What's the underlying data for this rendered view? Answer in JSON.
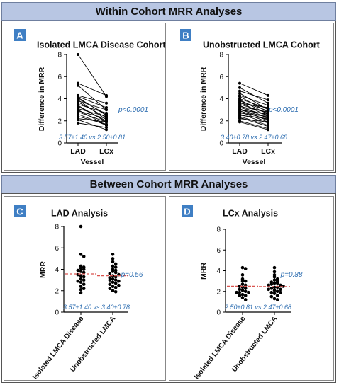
{
  "headers": {
    "within": "Within Cohort MRR Analyses",
    "between": "Between Cohort MRR Analyses"
  },
  "colors": {
    "header_bg": "#b8c6e3",
    "badge": "#3f7fc4",
    "stat_text": "#2b6cb0",
    "mean_line": "#d9534f",
    "data": "#000000"
  },
  "chart_data": [
    {
      "panel": "A",
      "type": "line",
      "title": "Isolated LMCA Disease Cohort",
      "xlabel": "Vessel",
      "ylabel": "Difference in MRR",
      "categories": [
        "LAD",
        "LCx"
      ],
      "ylim": [
        0,
        8
      ],
      "yticks": [
        0,
        2,
        4,
        6,
        8
      ],
      "pvalue": "p<0.0001",
      "summary": "3.57±1.40 vs 2.50±0.81",
      "pairs": [
        [
          8.0,
          4.2
        ],
        [
          5.4,
          4.3
        ],
        [
          5.2,
          3.0
        ],
        [
          4.3,
          3.6
        ],
        [
          4.2,
          3.2
        ],
        [
          4.1,
          2.5
        ],
        [
          4.0,
          2.6
        ],
        [
          3.9,
          2.1
        ],
        [
          3.8,
          3.0
        ],
        [
          3.7,
          2.3
        ],
        [
          3.5,
          2.7
        ],
        [
          3.4,
          1.9
        ],
        [
          3.3,
          2.0
        ],
        [
          3.1,
          2.4
        ],
        [
          3.0,
          1.6
        ],
        [
          2.9,
          2.2
        ],
        [
          2.8,
          1.9
        ],
        [
          2.6,
          1.6
        ],
        [
          2.4,
          1.7
        ],
        [
          2.2,
          1.9
        ],
        [
          2.1,
          1.2
        ],
        [
          1.8,
          1.4
        ]
      ]
    },
    {
      "panel": "B",
      "type": "line",
      "title": "Unobstructed LMCA Cohort",
      "xlabel": "Vessel",
      "ylabel": "Difference in MRR",
      "categories": [
        "LAD",
        "LCx"
      ],
      "ylim": [
        0,
        8
      ],
      "yticks": [
        0,
        2,
        4,
        6,
        8
      ],
      "pvalue": "p<0.0001",
      "summary": "3.40±0.78 vs 2.47±0.68",
      "pairs": [
        [
          5.4,
          4.3
        ],
        [
          5.0,
          3.6
        ],
        [
          4.7,
          3.9
        ],
        [
          4.5,
          3.0
        ],
        [
          4.3,
          3.4
        ],
        [
          4.2,
          2.8
        ],
        [
          4.0,
          3.1
        ],
        [
          3.9,
          2.6
        ],
        [
          3.8,
          2.9
        ],
        [
          3.7,
          2.4
        ],
        [
          3.6,
          3.2
        ],
        [
          3.5,
          2.7
        ],
        [
          3.4,
          2.2
        ],
        [
          3.3,
          2.8
        ],
        [
          3.2,
          2.5
        ],
        [
          3.1,
          2.0
        ],
        [
          3.0,
          2.6
        ],
        [
          3.0,
          2.3
        ],
        [
          2.9,
          2.1
        ],
        [
          2.8,
          1.9
        ],
        [
          2.7,
          2.4
        ],
        [
          2.6,
          1.8
        ],
        [
          2.5,
          2.2
        ],
        [
          2.4,
          1.6
        ],
        [
          2.3,
          1.5
        ],
        [
          2.2,
          1.9
        ],
        [
          2.0,
          1.3
        ],
        [
          1.9,
          1.2
        ]
      ]
    },
    {
      "panel": "C",
      "type": "scatter",
      "title": "LAD  Analysis",
      "ylabel": "MRR",
      "categories": [
        "Isolated LMCA Disease",
        "Unobstructed LMCA"
      ],
      "ylim": [
        0,
        8
      ],
      "yticks": [
        0,
        2,
        4,
        6,
        8
      ],
      "pvalue": "p=0.56",
      "summary": "3.57±1.40 vs 3.40±0.78",
      "means": [
        3.57,
        3.4
      ],
      "series": [
        {
          "values": [
            8.0,
            5.4,
            5.2,
            4.3,
            4.2,
            4.1,
            4.0,
            3.9,
            3.8,
            3.7,
            3.5,
            3.4,
            3.3,
            3.1,
            3.0,
            2.9,
            2.8,
            2.6,
            2.4,
            2.2,
            2.1,
            1.8
          ]
        },
        {
          "values": [
            5.4,
            5.0,
            4.7,
            4.5,
            4.3,
            4.2,
            4.0,
            3.9,
            3.8,
            3.7,
            3.6,
            3.5,
            3.4,
            3.3,
            3.2,
            3.1,
            3.0,
            3.0,
            2.9,
            2.8,
            2.7,
            2.6,
            2.5,
            2.4,
            2.3,
            2.2,
            2.0,
            1.9
          ]
        }
      ]
    },
    {
      "panel": "D",
      "type": "scatter",
      "title": "LCx  Analysis",
      "ylabel": "MRR",
      "categories": [
        "Isolated LMCA Disease",
        "Unobstructed LMCA"
      ],
      "ylim": [
        0,
        8
      ],
      "yticks": [
        0,
        2,
        4,
        6,
        8
      ],
      "pvalue": "p=0.88",
      "summary": "2.50±0.81 vs 2.47±0.68",
      "means": [
        2.5,
        2.47
      ],
      "series": [
        {
          "values": [
            4.3,
            4.2,
            3.6,
            3.2,
            3.0,
            3.0,
            2.7,
            2.6,
            2.5,
            2.4,
            2.3,
            2.2,
            2.1,
            2.0,
            1.9,
            1.9,
            1.9,
            1.7,
            1.6,
            1.6,
            1.4,
            1.2
          ]
        },
        {
          "values": [
            4.3,
            3.9,
            3.6,
            3.4,
            3.2,
            3.1,
            3.0,
            2.9,
            2.8,
            2.8,
            2.7,
            2.6,
            2.6,
            2.5,
            2.4,
            2.4,
            2.3,
            2.2,
            2.2,
            2.1,
            2.0,
            1.9,
            1.9,
            1.8,
            1.6,
            1.5,
            1.3,
            1.2
          ]
        }
      ]
    }
  ]
}
